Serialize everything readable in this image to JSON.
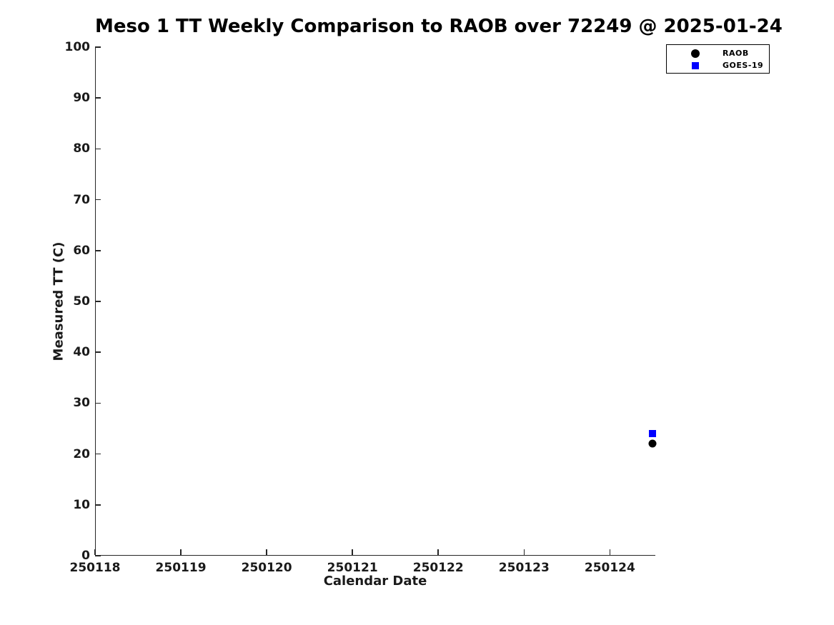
{
  "page": {
    "background": "#ffffff",
    "text_color": "#000000"
  },
  "chart_data": {
    "type": "scatter",
    "title": "Meso 1 TT Weekly Comparison to RAOB over 72249 @ 2025-01-24",
    "xlabel": "Calendar Date",
    "ylabel": "Measured TT (C)",
    "xlim": [
      250118,
      250124.53
    ],
    "ylim": [
      0,
      100
    ],
    "xticks": [
      250118,
      250119,
      250120,
      250121,
      250122,
      250123,
      250124
    ],
    "yticks": [
      0,
      10,
      20,
      30,
      40,
      50,
      60,
      70,
      80,
      90,
      100
    ],
    "grid": false,
    "legend_position": "top-right-outside",
    "series": [
      {
        "name": "RAOB",
        "marker": "circle",
        "color": "#000000",
        "points": [
          {
            "x": 250124.5,
            "y": 22
          }
        ]
      },
      {
        "name": "GOES-19",
        "marker": "square",
        "color": "#0000ff",
        "points": [
          {
            "x": 250124.5,
            "y": 24
          }
        ]
      }
    ]
  }
}
